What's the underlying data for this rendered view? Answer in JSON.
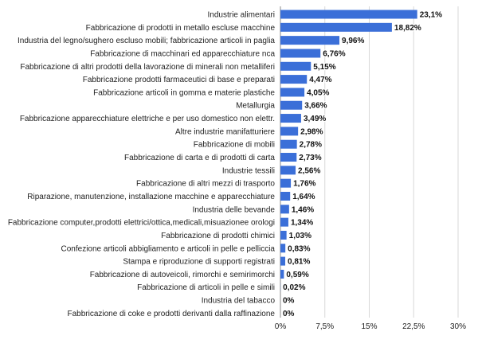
{
  "chart_data": {
    "type": "bar",
    "orientation": "horizontal",
    "title": "",
    "xlabel": "",
    "ylabel": "",
    "xlim": [
      0,
      30
    ],
    "grid": true,
    "legend": "none",
    "bar_color": "#3b6fd8",
    "categories": [
      "Industrie alimentari",
      "Fabbricazione di prodotti in metallo escluse macchine",
      "Industria del legno/sughero escluso mobili; fabbricazione articoli in paglia",
      "Fabbricazione di macchinari ed apparecchiature nca",
      "Fabbricazione di altri prodotti della lavorazione di minerali non metalliferi",
      "Fabbricazione prodotti farmaceutici di base e preparati",
      "Fabbricazione articoli in gomma e materie plastiche",
      "Metallurgia",
      "Fabbricazione apparecchiature elettriche e per uso domestico non elettr.",
      "Altre industrie manifatturiere",
      "Fabbricazione di mobili",
      "Fabbricazione di carta e di prodotti di carta",
      "Industrie tessili",
      "Fabbricazione di altri mezzi di trasporto",
      "Riparazione, manutenzione, installazione macchine e apparecchiature",
      "Industria delle bevande",
      "Fabbricazione computer,prodotti elettrici/ottica,medicali,misuazionee orologi",
      "Fabbricazione di prodotti chimici",
      "Confezione articoli abbigliamento e articoli in pelle e pelliccia",
      "Stampa e riproduzione di supporti registrati",
      "Fabbricazione di autoveicoli, rimorchi e semirimorchi",
      "Fabbricazione di articoli in pelle e simili",
      "Industria del tabacco",
      "Fabbricazione di coke e prodotti derivanti dalla raffinazione"
    ],
    "values": [
      23.1,
      18.82,
      9.96,
      6.76,
      5.15,
      4.47,
      4.05,
      3.66,
      3.49,
      2.98,
      2.78,
      2.73,
      2.56,
      1.76,
      1.64,
      1.46,
      1.34,
      1.03,
      0.83,
      0.81,
      0.59,
      0.02,
      0,
      0
    ],
    "value_labels": [
      "23,1%",
      "18,82%",
      "9,96%",
      "6,76%",
      "5,15%",
      "4,47%",
      "4,05%",
      "3,66%",
      "3,49%",
      "2,98%",
      "2,78%",
      "2,73%",
      "2,56%",
      "1,76%",
      "1,64%",
      "1,46%",
      "1,34%",
      "1,03%",
      "0,83%",
      "0,81%",
      "0,59%",
      "0,02%",
      "0%",
      "0%"
    ],
    "x_ticks": [
      0,
      7.5,
      15,
      22.5,
      30
    ],
    "x_tick_labels": [
      "0%",
      "7,5%",
      "15%",
      "22,5%",
      "30%"
    ]
  }
}
